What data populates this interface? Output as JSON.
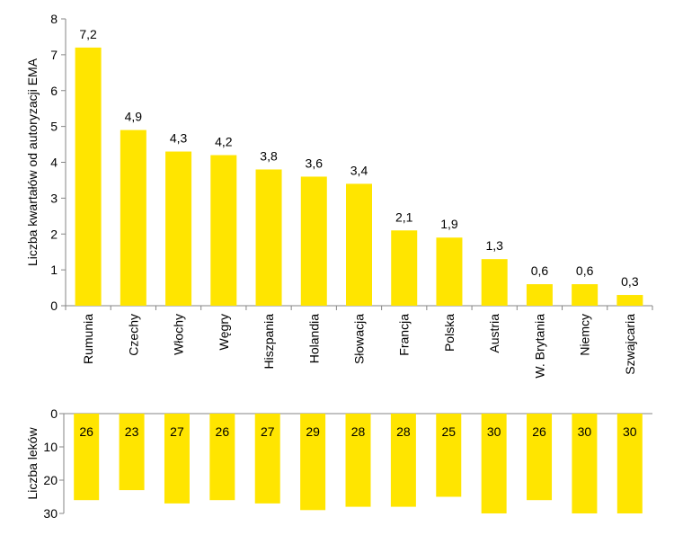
{
  "chart_data": [
    {
      "type": "bar",
      "categories": [
        "Rumunia",
        "Czechy",
        "Włochy",
        "Węgry",
        "Hiszpania",
        "Holandia",
        "Słowacja",
        "Francja",
        "Polska",
        "Austria",
        "W. Brytania",
        "Niemcy",
        "Szwajcaria"
      ],
      "values": [
        7.2,
        4.9,
        4.3,
        4.2,
        3.8,
        3.6,
        3.4,
        2.1,
        1.9,
        1.3,
        0.6,
        0.6,
        0.3
      ],
      "data_labels": [
        "7,2",
        "4,9",
        "4,3",
        "4,2",
        "3,8",
        "3,6",
        "3,4",
        "2,1",
        "1,9",
        "1,3",
        "0,6",
        "0,6",
        "0,3"
      ],
      "ylabel": "Liczba kwartałów  od autoryzacji EMA",
      "ylim": [
        0,
        8
      ],
      "yticks": [
        0,
        1,
        2,
        3,
        4,
        5,
        6,
        7,
        8
      ],
      "color": "#FFE500",
      "grid": false
    },
    {
      "type": "bar",
      "orientation": "reversed-y",
      "categories": [
        "Rumunia",
        "Czechy",
        "Włochy",
        "Węgry",
        "Hiszpania",
        "Holandia",
        "Słowacja",
        "Francja",
        "Polska",
        "Austria",
        "W. Brytania",
        "Niemcy",
        "Szwajcaria"
      ],
      "values": [
        26,
        23,
        27,
        26,
        27,
        29,
        28,
        28,
        25,
        30,
        26,
        30,
        30
      ],
      "data_labels": [
        "26",
        "23",
        "27",
        "26",
        "27",
        "29",
        "28",
        "28",
        "25",
        "30",
        "26",
        "30",
        "30"
      ],
      "ylabel": "Liczba leków",
      "ylim": [
        0,
        30
      ],
      "yticks": [
        0,
        10,
        20,
        30
      ],
      "color": "#FFE500",
      "grid": false
    }
  ]
}
